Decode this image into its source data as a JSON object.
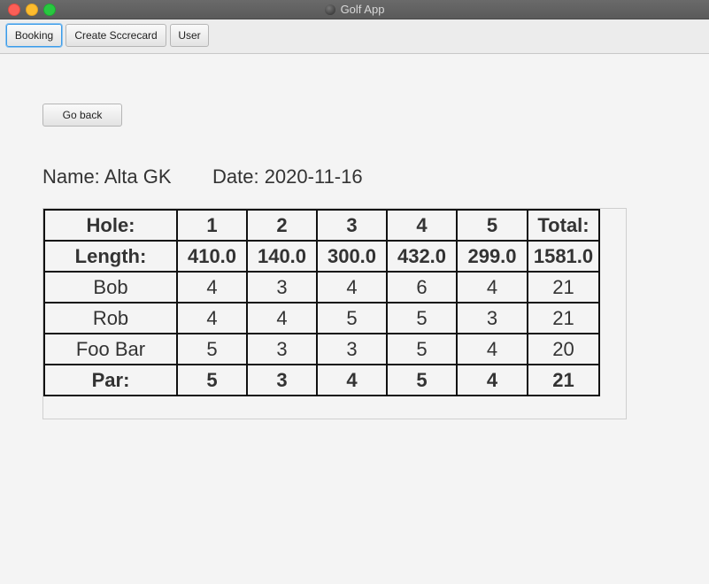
{
  "window": {
    "title": "Golf App"
  },
  "toolbar": {
    "tabs": [
      {
        "label": "Booking"
      },
      {
        "label": "Create Sccrecard"
      },
      {
        "label": "User"
      }
    ]
  },
  "main": {
    "back_label": "Go back",
    "name_text": "Name: Alta GK",
    "date_text": "Date: 2020-11-16"
  },
  "scorecard": {
    "rows": [
      {
        "bold": true,
        "cells": [
          "Hole:",
          "1",
          "2",
          "3",
          "4",
          "5",
          "Total:"
        ]
      },
      {
        "bold": true,
        "cells": [
          "Length:",
          "410.0",
          "140.0",
          "300.0",
          "432.0",
          "299.0",
          "1581.0"
        ]
      },
      {
        "bold": false,
        "cells": [
          "Bob",
          "4",
          "3",
          "4",
          "6",
          "4",
          "21"
        ]
      },
      {
        "bold": false,
        "cells": [
          "Rob",
          "4",
          "4",
          "5",
          "5",
          "3",
          "21"
        ]
      },
      {
        "bold": false,
        "cells": [
          "Foo Bar",
          "5",
          "3",
          "3",
          "5",
          "4",
          "20"
        ]
      },
      {
        "bold": true,
        "cells": [
          "Par:",
          "5",
          "3",
          "4",
          "5",
          "4",
          "21"
        ]
      }
    ]
  },
  "colors": {
    "focus_ring": "#3a9be8",
    "close": "#fc5f57",
    "minimize": "#fdbc2e",
    "maximize": "#28c840"
  }
}
